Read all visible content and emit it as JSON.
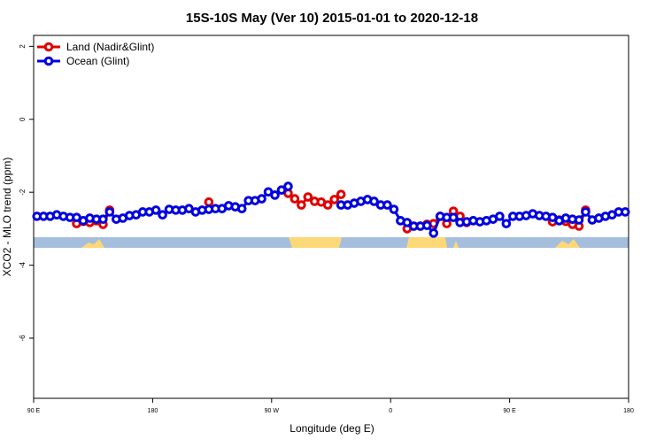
{
  "chart_data": {
    "type": "line",
    "title": "15S-10S May (Ver 10)   2015-01-01 to 2020-12-18",
    "xlabel": "Longitude (deg E)",
    "ylabel": "XCO2 - MLO trend (ppm)",
    "x": [
      92.5,
      97.5,
      102.5,
      107.5,
      112.5,
      117.5,
      122.5,
      127.5,
      132.5,
      137.5,
      142.5,
      147.5,
      152.5,
      157.5,
      162.5,
      167.5,
      172.5,
      177.5,
      182.5,
      187.5,
      192.5,
      197.5,
      202.5,
      207.5,
      212.5,
      217.5,
      222.5,
      227.5,
      232.5,
      237.5,
      242.5,
      247.5,
      252.5,
      257.5,
      262.5,
      267.5,
      272.5,
      277.5,
      282.5,
      287.5,
      292.5,
      297.5,
      302.5,
      307.5,
      312.5,
      317.5,
      322.5,
      327.5,
      332.5,
      337.5,
      342.5,
      347.5,
      352.5,
      357.5,
      362.5,
      367.5,
      372.5,
      377.5,
      382.5,
      387.5,
      392.5,
      397.5,
      402.5,
      407.5,
      412.5,
      417.5,
      422.5,
      427.5,
      432.5,
      437.5,
      442.5,
      447.5,
      452.5,
      457.5,
      462.5,
      467.5,
      472.5,
      477.5,
      482.5,
      487.5,
      492.5,
      497.5,
      502.5,
      507.5,
      512.5,
      517.5,
      522.5,
      527.5,
      532.5,
      537.5
    ],
    "series": [
      {
        "name": "Land (Nadir&Glint)",
        "color": "#e00000",
        "values": [
          null,
          null,
          null,
          null,
          null,
          null,
          -2.86,
          -2.8,
          -2.83,
          -2.78,
          -2.88,
          -2.49,
          null,
          null,
          null,
          null,
          null,
          null,
          null,
          null,
          null,
          null,
          null,
          null,
          null,
          null,
          -2.27,
          null,
          null,
          null,
          null,
          null,
          null,
          null,
          null,
          null,
          null,
          null,
          -2.03,
          -2.18,
          -2.35,
          -2.13,
          -2.25,
          -2.27,
          -2.35,
          -2.2,
          -2.06,
          null,
          null,
          null,
          null,
          null,
          null,
          null,
          null,
          null,
          -3.0,
          -2.93,
          -2.93,
          -2.88,
          -2.86,
          -2.66,
          -2.86,
          -2.52,
          -2.66,
          -2.83,
          null,
          null,
          null,
          null,
          null,
          null,
          null,
          null,
          null,
          null,
          null,
          null,
          -2.81,
          -2.76,
          -2.8,
          -2.88,
          -2.93,
          -2.49,
          null,
          null,
          null,
          null,
          null,
          null
        ]
      },
      {
        "name": "Ocean (Glint)",
        "color": "#0000e0",
        "values": [
          -2.66,
          -2.66,
          -2.66,
          -2.62,
          -2.66,
          -2.69,
          -2.69,
          -2.78,
          -2.71,
          -2.74,
          -2.74,
          -2.54,
          -2.74,
          -2.71,
          -2.64,
          -2.62,
          -2.54,
          -2.54,
          -2.49,
          -2.62,
          -2.47,
          -2.49,
          -2.49,
          -2.45,
          -2.54,
          -2.49,
          -2.47,
          -2.45,
          -2.45,
          -2.37,
          -2.4,
          -2.45,
          -2.23,
          -2.23,
          -2.18,
          -1.99,
          -2.08,
          -1.94,
          -1.84,
          null,
          null,
          null,
          null,
          null,
          null,
          null,
          -2.35,
          -2.35,
          -2.3,
          -2.25,
          -2.2,
          -2.25,
          -2.35,
          -2.35,
          -2.47,
          -2.78,
          -2.83,
          -2.93,
          -2.93,
          -2.91,
          -3.12,
          -2.66,
          -2.69,
          -2.69,
          -2.83,
          -2.81,
          -2.78,
          -2.81,
          -2.78,
          -2.74,
          -2.66,
          -2.86,
          -2.66,
          -2.66,
          -2.64,
          -2.59,
          -2.64,
          -2.66,
          -2.69,
          -2.78,
          -2.71,
          -2.74,
          -2.76,
          -2.54,
          -2.76,
          -2.71,
          -2.66,
          -2.62,
          -2.54,
          -2.54
        ]
      }
    ],
    "xlim": [
      90,
      540
    ],
    "xticks": [
      {
        "value": 90,
        "label": "90 E"
      },
      180,
      {
        "value": 270,
        "label": "90 W"
      },
      {
        "value": 360,
        "label": "0"
      },
      {
        "value": 450,
        "label": "90 E"
      },
      {
        "value": 540,
        "label": "180"
      }
    ],
    "ylim": [
      -7.65,
      2.3
    ],
    "yticks": [
      -6,
      -4,
      -2,
      0,
      2
    ],
    "legend": "top-left"
  }
}
